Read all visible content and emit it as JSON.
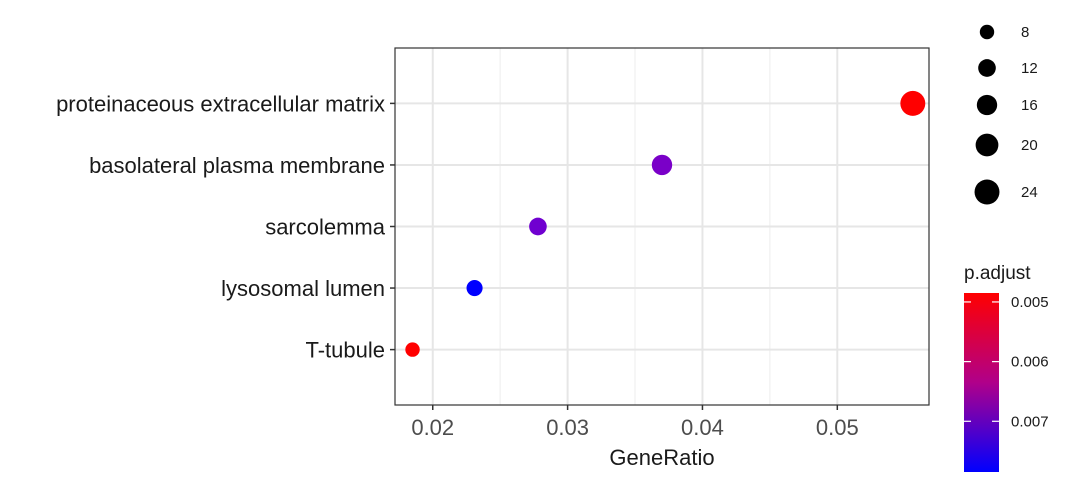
{
  "chart_data": {
    "type": "scatter",
    "xlabel": "GeneRatio",
    "ylabel": "",
    "xlim": [
      0.0172,
      0.0568
    ],
    "x_ticks": [
      "0.02",
      "0.03",
      "0.04",
      "0.05"
    ],
    "x_tick_values": [
      0.02,
      0.03,
      0.04,
      0.05
    ],
    "grid": true,
    "points": [
      {
        "category": "proteinaceous extracellular matrix",
        "gene_ratio": 0.0556,
        "count": 24,
        "p_adjust": 0.0049,
        "color": "#ff0000"
      },
      {
        "category": "basolateral plasma membrane",
        "gene_ratio": 0.037,
        "count": 16,
        "p_adjust": 0.0064,
        "color": "#7a00c8"
      },
      {
        "category": "sarcolemma",
        "gene_ratio": 0.0278,
        "count": 12,
        "p_adjust": 0.0065,
        "color": "#7000d0"
      },
      {
        "category": "lysosomal lumen",
        "gene_ratio": 0.0231,
        "count": 10,
        "p_adjust": 0.0077,
        "color": "#0000ff"
      },
      {
        "category": "T-tubule",
        "gene_ratio": 0.0185,
        "count": 8,
        "p_adjust": 0.0049,
        "color": "#ff0000"
      }
    ],
    "size_legend": {
      "title": "",
      "entries": [
        "8",
        "12",
        "16",
        "20",
        "24"
      ],
      "values": [
        8,
        12,
        16,
        20,
        24
      ]
    },
    "color_legend": {
      "title": "p.adjust",
      "ticks": [
        "0.005",
        "0.006",
        "0.007"
      ],
      "tick_values": [
        0.005,
        0.006,
        0.007
      ],
      "range": [
        0.00485,
        0.00785
      ],
      "low_color": "#ff0000",
      "high_color": "#0000ff",
      "placement": "right"
    }
  }
}
